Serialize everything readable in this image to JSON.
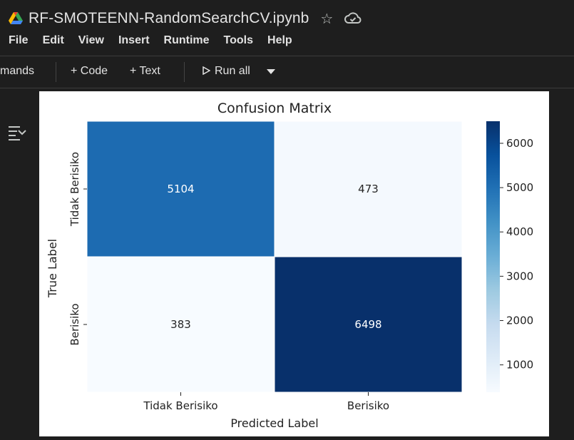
{
  "notebook": {
    "title": "RF-SMOTEENN-RandomSearchCV.ipynb",
    "icons": [
      "google-drive-icon",
      "star-icon",
      "cloud-saved-icon"
    ]
  },
  "menu": [
    "File",
    "Edit",
    "View",
    "Insert",
    "Runtime",
    "Tools",
    "Help"
  ],
  "toolbar": {
    "commands_label": "mands",
    "add_code": "+ Code",
    "add_text": "+ Text",
    "run_all": "Run all",
    "run_all_dropdown_icon": "chevron-down-icon"
  },
  "gutter": {
    "icon": "output-collapse-icon"
  },
  "chart_data": {
    "type": "heatmap",
    "title": "Confusion Matrix",
    "xlabel": "Predicted Label",
    "ylabel": "True Label",
    "x_categories": [
      "Tidak Berisiko",
      "Berisiko"
    ],
    "y_categories": [
      "Tidak Berisiko",
      "Berisiko"
    ],
    "values": [
      [
        5104,
        473
      ],
      [
        383,
        6498
      ]
    ],
    "colormap": "Blues",
    "colorbar": {
      "min": 383,
      "max": 6498,
      "ticks": [
        1000,
        2000,
        3000,
        4000,
        5000,
        6000
      ]
    },
    "colors": {
      "low": "#f7fbff",
      "high": "#08306b"
    }
  }
}
